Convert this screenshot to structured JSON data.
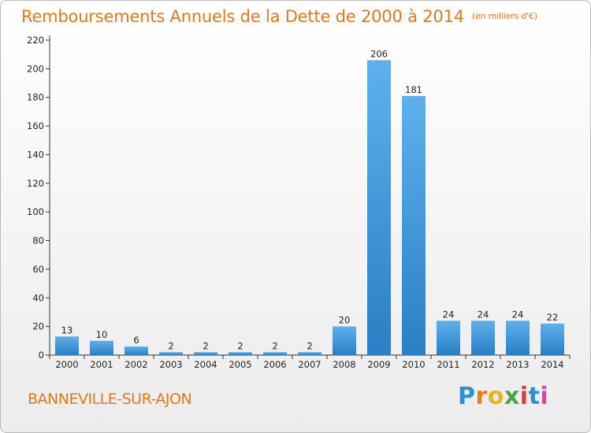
{
  "header": {
    "title": "Remboursements Annuels de la Dette de 2000 à 2014",
    "unit": "(en milliers d'€)"
  },
  "footer": {
    "commune": "BANNEVILLE-SUR-AJON",
    "logo": [
      "P",
      "r",
      "o",
      "x",
      "i",
      "t",
      "i"
    ]
  },
  "colors": {
    "bar_top": "#5eb1ea",
    "bar_bottom": "#2a7fc5",
    "title": "#e0781e"
  },
  "chart_data": {
    "type": "bar",
    "title": "Remboursements Annuels de la Dette de 2000 à 2014",
    "subtitle": "(en milliers d'€)",
    "categories": [
      "2000",
      "2001",
      "2002",
      "2003",
      "2004",
      "2005",
      "2006",
      "2007",
      "2008",
      "2009",
      "2010",
      "2011",
      "2012",
      "2013",
      "2014"
    ],
    "values": [
      13,
      10,
      6,
      2,
      2,
      2,
      2,
      2,
      20,
      206,
      181,
      24,
      24,
      24,
      22
    ],
    "ylim": [
      0,
      220
    ],
    "yticks": [
      0,
      20,
      40,
      60,
      80,
      100,
      120,
      140,
      160,
      180,
      200,
      220
    ],
    "xlabel": "",
    "ylabel": "",
    "grid": false,
    "legend": "none"
  }
}
